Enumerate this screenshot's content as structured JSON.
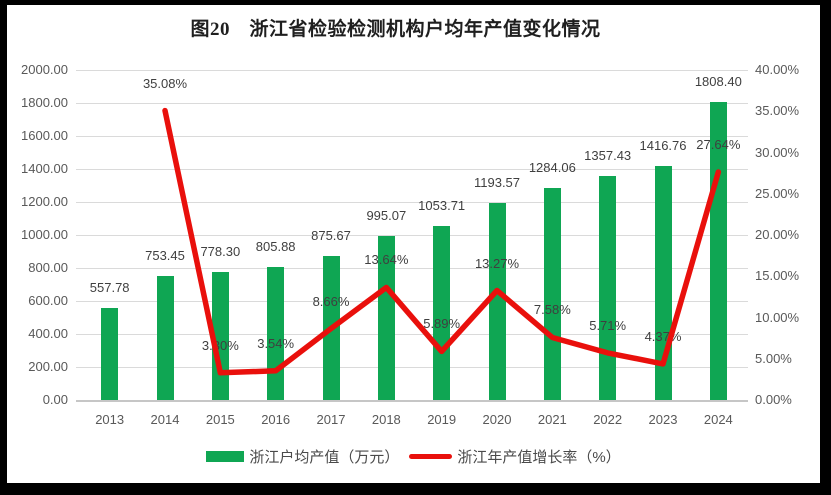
{
  "title": "图20　浙江省检验检测机构户均年产值变化情况",
  "chart_data": {
    "type": "bar+line combo",
    "title": "图20　浙江省检验检测机构户均年产值变化情况",
    "categories": [
      "2013",
      "2014",
      "2015",
      "2016",
      "2017",
      "2018",
      "2019",
      "2020",
      "2021",
      "2022",
      "2023",
      "2024"
    ],
    "series": [
      {
        "name": "浙江户均产值（万元）",
        "type": "bar",
        "axis": "left",
        "color": "#0fa653",
        "values": [
          557.78,
          753.45,
          778.3,
          805.88,
          875.67,
          995.07,
          1053.71,
          1193.57,
          1284.06,
          1357.43,
          1416.76,
          1808.4
        ],
        "labels": [
          "557.78",
          "753.45",
          "778.30",
          "805.88",
          "875.67",
          "995.07",
          "1053.71",
          "1193.57",
          "1284.06",
          "1357.43",
          "1416.76",
          "1808.40"
        ]
      },
      {
        "name": "浙江年产值增长率（%）",
        "type": "line",
        "axis": "right",
        "color": "#e9100c",
        "values": [
          null,
          35.08,
          3.3,
          3.54,
          8.66,
          13.64,
          5.89,
          13.27,
          7.58,
          5.71,
          4.37,
          27.64
        ],
        "labels": [
          null,
          "35.08%",
          "3.30%",
          "3.54%",
          "8.66%",
          "13.64%",
          "5.89%",
          "13.27%",
          "7.58%",
          "5.71%",
          "4.37%",
          "27.64%"
        ]
      }
    ],
    "left_axis": {
      "min": 0,
      "max": 2000,
      "ticks": [
        "2000.00",
        "1800.00",
        "1600.00",
        "1400.00",
        "1200.00",
        "1000.00",
        "800.00",
        "600.00",
        "400.00",
        "200.00",
        "0.00"
      ]
    },
    "right_axis": {
      "min": 0,
      "max": 40,
      "ticks": [
        "40.00%",
        "35.00%",
        "30.00%",
        "25.00%",
        "20.00%",
        "15.00%",
        "10.00%",
        "5.00%",
        "0.00%"
      ]
    },
    "grid": true,
    "legend_position": "bottom"
  },
  "legend": {
    "items": [
      {
        "label": "浙江户均产值（万元）",
        "color": "#0fa653",
        "shape": "rect"
      },
      {
        "label": "浙江年产值增长率（%）",
        "color": "#e9100c",
        "shape": "line"
      }
    ]
  },
  "colors": {
    "bar": "#0fa653",
    "line": "#e9100c",
    "gridline": "#dadada",
    "axis_line": "#c6c6c6",
    "frame": "#000000",
    "background": "#ffffff"
  }
}
